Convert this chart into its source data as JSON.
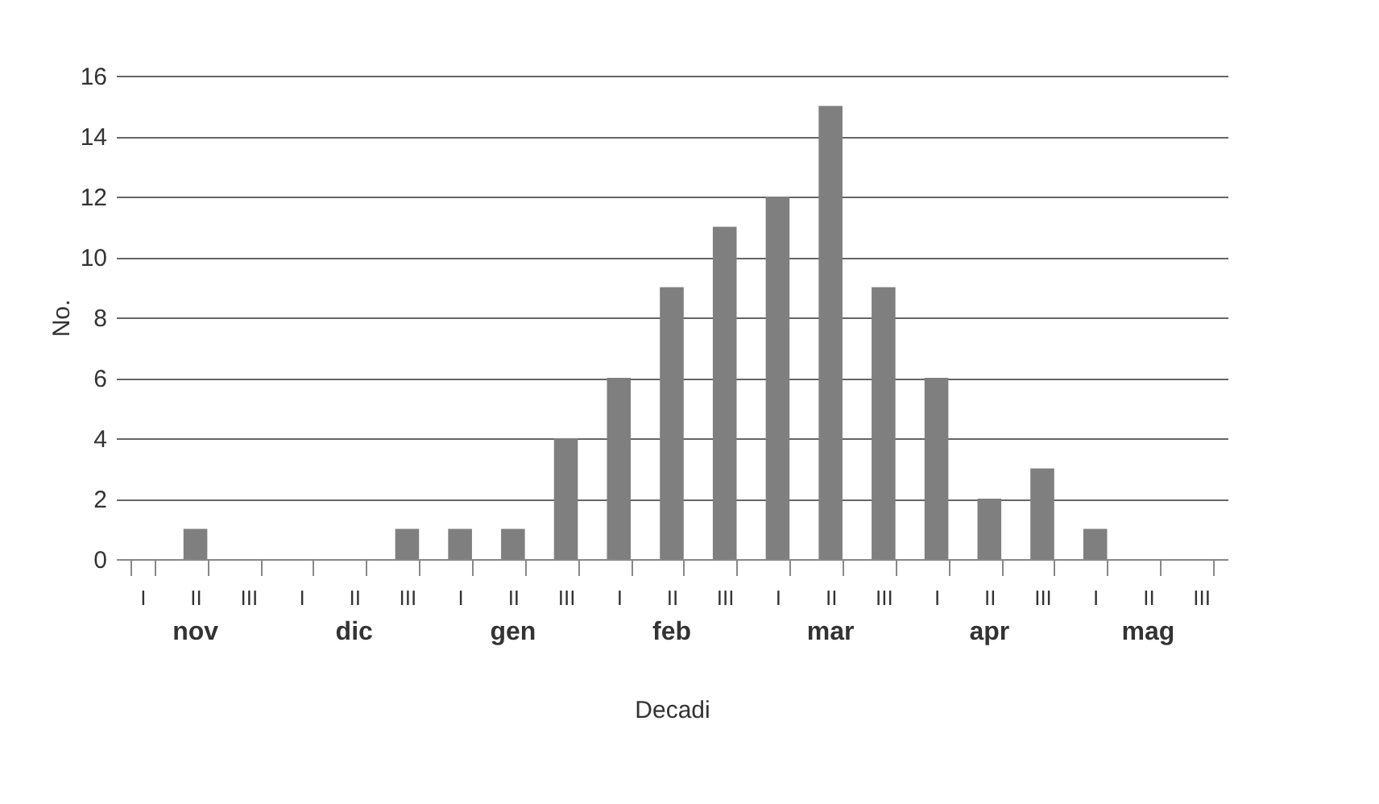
{
  "chart_data": {
    "type": "bar",
    "xlabel": "Decadi",
    "ylabel": "No.",
    "categories": [
      "I",
      "II",
      "III",
      "I",
      "II",
      "III",
      "I",
      "II",
      "III",
      "I",
      "II",
      "III",
      "I",
      "II",
      "III",
      "I",
      "II",
      "III",
      "I",
      "II",
      "III"
    ],
    "values": [
      0,
      1,
      0,
      0,
      0,
      1,
      1,
      1,
      4,
      6,
      9,
      11,
      12,
      15,
      9,
      6,
      2,
      3,
      1,
      0,
      0
    ],
    "color": "#7f7f7f",
    "ylim": [
      0,
      16
    ],
    "yticks": [
      0,
      2,
      4,
      6,
      8,
      10,
      12,
      14,
      16
    ],
    "grid": "y",
    "annotations": [
      "nov",
      "dic",
      "gen",
      "feb",
      "mar",
      "apr",
      "mag"
    ]
  }
}
